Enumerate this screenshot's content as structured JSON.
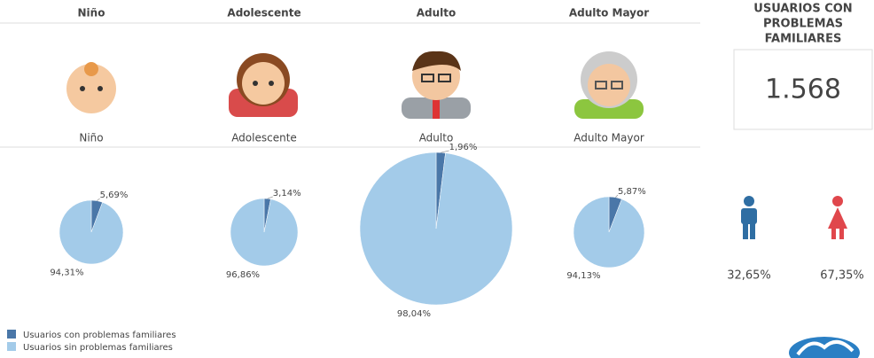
{
  "headers": [
    "Niño",
    "Adolescente",
    "Adulto",
    "Adulto Mayor"
  ],
  "chart_data": [
    {
      "type": "pie",
      "title": "Niño",
      "values": [
        5.69,
        94.31
      ],
      "value_labels": [
        "5,69%",
        "94,31%"
      ]
    },
    {
      "type": "pie",
      "title": "Adolescente",
      "values": [
        3.14,
        96.86
      ],
      "value_labels": [
        "3,14%",
        "96,86%"
      ]
    },
    {
      "type": "pie",
      "title": "Adulto",
      "values": [
        1.96,
        98.04
      ],
      "value_labels": [
        "1,96%",
        "98,04%"
      ]
    },
    {
      "type": "pie",
      "title": "Adulto Mayor",
      "values": [
        5.87,
        94.13
      ],
      "value_labels": [
        "5,87%",
        "94,13%"
      ]
    }
  ],
  "legend": [
    {
      "name": "Usuarios con problemas familiares",
      "color": "#4a77a8"
    },
    {
      "name": "Usuarios sin problemas familiares",
      "color": "#a3cbe9"
    }
  ],
  "kpi": {
    "title": [
      "USUARIOS CON",
      "PROBLEMAS",
      "FAMILIARES"
    ],
    "value": "1.568"
  },
  "gender": {
    "labels": [
      "32,65%",
      "67,35%"
    ]
  }
}
